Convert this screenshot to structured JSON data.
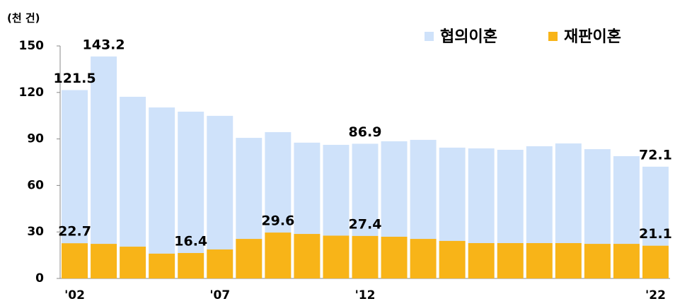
{
  "chart_data": {
    "type": "bar",
    "ylabel": "(천 건)",
    "categories": [
      "'02",
      null,
      null,
      null,
      null,
      "'07",
      null,
      null,
      null,
      null,
      "'12",
      null,
      null,
      null,
      null,
      null,
      null,
      null,
      null,
      null,
      "'22"
    ],
    "series": [
      {
        "name": "협의이혼",
        "color": "#cfe2fa",
        "values": [
          121.5,
          143.2,
          117.2,
          110.3,
          107.6,
          104.9,
          90.7,
          94.4,
          87.6,
          86.2,
          86.9,
          88.5,
          89.4,
          84.4,
          83.9,
          83.0,
          85.3,
          87.1,
          83.4,
          78.9,
          72.1
        ],
        "value_labels": [
          "121.5",
          "143.2",
          null,
          null,
          null,
          null,
          null,
          null,
          null,
          null,
          "86.9",
          null,
          null,
          null,
          null,
          null,
          null,
          null,
          null,
          null,
          "72.1"
        ]
      },
      {
        "name": "재판이혼",
        "color": "#f8b418",
        "values": [
          22.7,
          22.3,
          20.5,
          16.0,
          16.4,
          18.7,
          25.5,
          29.6,
          28.7,
          27.6,
          27.4,
          26.9,
          25.5,
          24.2,
          22.8,
          22.8,
          22.8,
          22.8,
          22.3,
          22.3,
          21.1
        ],
        "value_labels": [
          "22.7",
          null,
          null,
          null,
          "16.4",
          null,
          null,
          "29.6",
          null,
          null,
          "27.4",
          null,
          null,
          null,
          null,
          null,
          null,
          null,
          null,
          null,
          "21.1"
        ]
      }
    ],
    "ylim": [
      0,
      150
    ],
    "yticks": [
      0,
      30,
      60,
      90,
      120,
      150
    ],
    "legend": "top-right"
  }
}
